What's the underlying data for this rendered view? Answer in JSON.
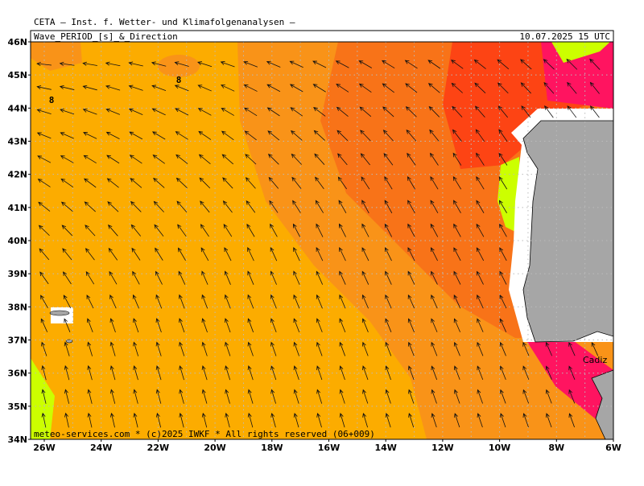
{
  "header": {
    "line1": "CETA — Inst. f. Wetter- und Klimafolgenanalysen —",
    "title": "Wave_PERIOD_[s]_&_Direction",
    "date": "10.07.2025 15 UTC"
  },
  "axes": {
    "lat_labels": [
      "46N",
      "45N",
      "44N",
      "43N",
      "42N",
      "41N",
      "40N",
      "39N",
      "38N",
      "37N",
      "36N",
      "35N",
      "34N"
    ],
    "lon_labels": [
      "26W",
      "24W",
      "22W",
      "20W",
      "18W",
      "16W",
      "14W",
      "12W",
      "10W",
      "8W",
      "6W"
    ]
  },
  "contour_labels": [
    "8",
    "8"
  ],
  "place_labels": [
    "Cadiz"
  ],
  "footer": "meteo-services.com * (c)2025 IWKF * All rights reserved (06+009)"
}
